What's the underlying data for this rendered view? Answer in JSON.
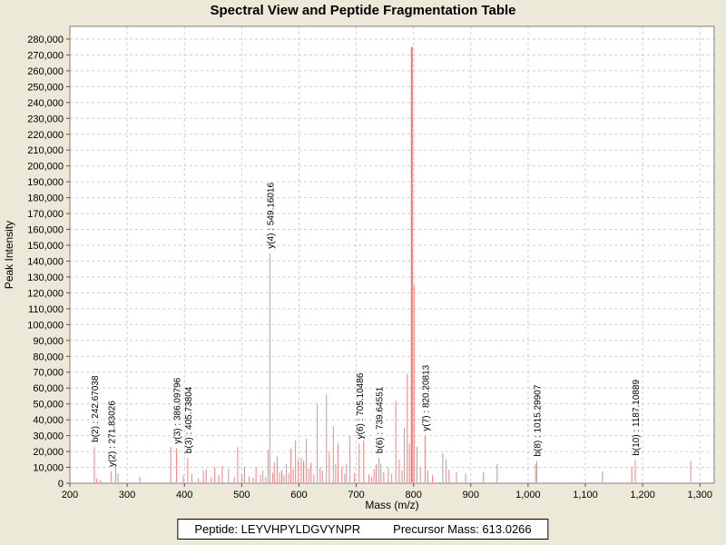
{
  "window": {
    "title": "Spectral View and Peptide Fragmentation Table"
  },
  "chart_data": {
    "type": "bar",
    "title": "Spectral View and Peptide Fragmentation Table",
    "xlabel": "Mass (m/z)",
    "ylabel": "Peak Intensity",
    "xlim": [
      200,
      1325
    ],
    "ylim": [
      0,
      288000
    ],
    "x_tick_interval": 100,
    "x_tick_max": 1300,
    "y_tick_interval": 10000,
    "y_tick_max": 280000,
    "grid": true,
    "legend_position": "none",
    "peak_color": "#f98181",
    "tall_peak_color": "#f76f6f",
    "peaks": [
      [
        242.67,
        23000
      ],
      [
        247,
        3200
      ],
      [
        253,
        2000
      ],
      [
        271.83,
        7500
      ],
      [
        280,
        11000
      ],
      [
        284,
        6200
      ],
      [
        322,
        4200
      ],
      [
        376,
        23000
      ],
      [
        386.1,
        22000
      ],
      [
        398,
        5000
      ],
      [
        405.74,
        16000
      ],
      [
        413,
        6000
      ],
      [
        424,
        3000
      ],
      [
        433,
        8000
      ],
      [
        438,
        8600
      ],
      [
        447,
        4000
      ],
      [
        453,
        10000
      ],
      [
        460,
        5200
      ],
      [
        466,
        11000
      ],
      [
        477,
        9000
      ],
      [
        487,
        4000
      ],
      [
        493,
        23000
      ],
      [
        500,
        6000
      ],
      [
        505,
        10500
      ],
      [
        513,
        4200
      ],
      [
        520,
        3500
      ],
      [
        525,
        10000
      ],
      [
        533,
        5200
      ],
      [
        537,
        8000
      ],
      [
        542,
        4000
      ],
      [
        546,
        21000
      ],
      [
        549.16,
        145000
      ],
      [
        554,
        6500
      ],
      [
        557,
        13000
      ],
      [
        562,
        17000
      ],
      [
        566,
        7000
      ],
      [
        570,
        8200
      ],
      [
        574,
        5000
      ],
      [
        578,
        12000
      ],
      [
        582,
        6500
      ],
      [
        586,
        22000
      ],
      [
        590,
        9000
      ],
      [
        594,
        27000
      ],
      [
        599,
        15000
      ],
      [
        604,
        16000
      ],
      [
        608,
        14000
      ],
      [
        613,
        28000
      ],
      [
        617,
        9500
      ],
      [
        621,
        13000
      ],
      [
        626,
        5500
      ],
      [
        632,
        50000
      ],
      [
        637,
        10000
      ],
      [
        641,
        8000
      ],
      [
        648,
        56000
      ],
      [
        653,
        20000
      ],
      [
        660,
        36000
      ],
      [
        664,
        12000
      ],
      [
        668,
        25000
      ],
      [
        675,
        10500
      ],
      [
        680,
        6000
      ],
      [
        683,
        12000
      ],
      [
        689,
        30000
      ],
      [
        697,
        6500
      ],
      [
        705.1,
        25000
      ],
      [
        713,
        27000
      ],
      [
        722,
        5500
      ],
      [
        727,
        4000
      ],
      [
        731,
        9000
      ],
      [
        735,
        12000
      ],
      [
        739.65,
        16000
      ],
      [
        743,
        12500
      ],
      [
        748,
        7000
      ],
      [
        756,
        10000
      ],
      [
        762,
        6000
      ],
      [
        769,
        52000
      ],
      [
        775,
        15000
      ],
      [
        780,
        8000
      ],
      [
        784,
        35000
      ],
      [
        789,
        69000
      ],
      [
        793,
        25000
      ],
      [
        797,
        275000
      ],
      [
        801,
        125000
      ],
      [
        806,
        23000
      ],
      [
        812,
        10000
      ],
      [
        820.21,
        30000
      ],
      [
        825,
        8000
      ],
      [
        833,
        5000
      ],
      [
        851,
        19000
      ],
      [
        857,
        15000
      ],
      [
        862,
        8500
      ],
      [
        875,
        7000
      ],
      [
        891,
        6000
      ],
      [
        922,
        7000
      ],
      [
        946,
        12000
      ],
      [
        1013,
        12000
      ],
      [
        1015.3,
        14000
      ],
      [
        1130,
        7500
      ],
      [
        1181,
        10000
      ],
      [
        1187.11,
        14500
      ],
      [
        1284,
        14000
      ]
    ],
    "annotations": [
      {
        "label": "b(2) : 242.67038",
        "mz": 242.67038,
        "intensity": 23000
      },
      {
        "label": "y(2) : 271.83026",
        "mz": 271.83026,
        "intensity": 7500
      },
      {
        "label": "y(3) : 386.09796",
        "mz": 386.09796,
        "intensity": 22000
      },
      {
        "label": "b(3) : 405.73804",
        "mz": 405.73804,
        "intensity": 16000
      },
      {
        "label": "y(4) : 549.16016",
        "mz": 549.16016,
        "intensity": 145000
      },
      {
        "label": "y(6) : 705.10486",
        "mz": 705.10486,
        "intensity": 25000
      },
      {
        "label": "b(6) : 739.64551",
        "mz": 739.64551,
        "intensity": 16000
      },
      {
        "label": "y(7) : 820.20813",
        "mz": 820.20813,
        "intensity": 30000
      },
      {
        "label": "b(8) : 1015.29907",
        "mz": 1015.29907,
        "intensity": 14000
      },
      {
        "label": "b(10) : 1187.10889",
        "mz": 1187.10889,
        "intensity": 14500
      }
    ]
  },
  "footer": {
    "peptide": "Peptide: LEYVHPYLDGVYNPR",
    "precursor": "Precursor Mass: 613.0266"
  }
}
